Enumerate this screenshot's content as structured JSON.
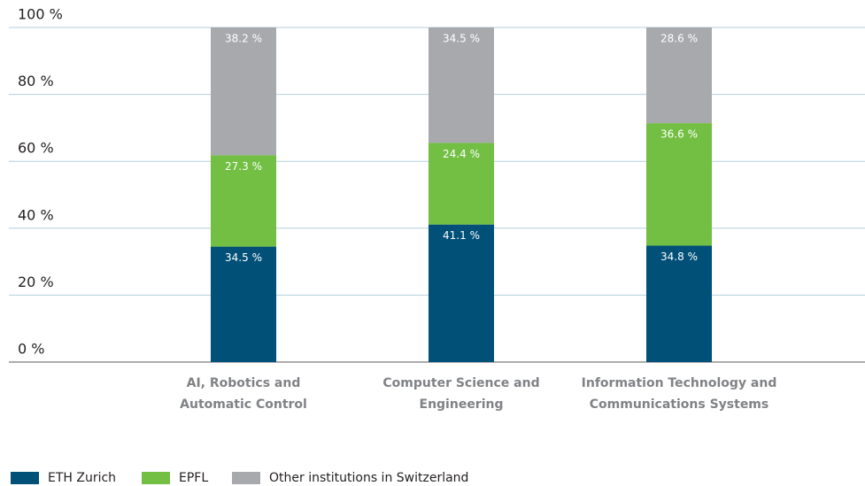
{
  "chart_data": {
    "type": "stacked_bar",
    "categories": [
      "AI, Robotics and\nAutomatic Control",
      "Computer Science and\nEngineering",
      "Information Technology and\nCommunications Systems"
    ],
    "series": [
      {
        "name": "ETH Zurich",
        "color": "#005077",
        "values": [
          34.5,
          41.1,
          34.8
        ],
        "value_labels": [
          "34.5 %",
          "41.1 %",
          "34.8 %"
        ]
      },
      {
        "name": "EPFL",
        "color": "#72bf44",
        "values": [
          27.3,
          24.4,
          36.6
        ],
        "value_labels": [
          "27.3 %",
          "24.4 %",
          "36.6 %"
        ]
      },
      {
        "name": "Other institutions in Switzerland",
        "color": "#a7a9ac",
        "values": [
          38.2,
          34.5,
          28.6
        ],
        "value_labels": [
          "38.2 %",
          "34.5 %",
          "28.6 %"
        ]
      }
    ],
    "ylim": [
      0,
      100
    ],
    "yticks": [
      {
        "value": 0,
        "label": "0 %"
      },
      {
        "value": 20,
        "label": "20 %"
      },
      {
        "value": 40,
        "label": "40 %"
      },
      {
        "value": 60,
        "label": "60 %"
      },
      {
        "value": 80,
        "label": "80 %"
      },
      {
        "value": 100,
        "label": "100 %"
      }
    ],
    "grid": true,
    "legend": "bottom-left"
  }
}
